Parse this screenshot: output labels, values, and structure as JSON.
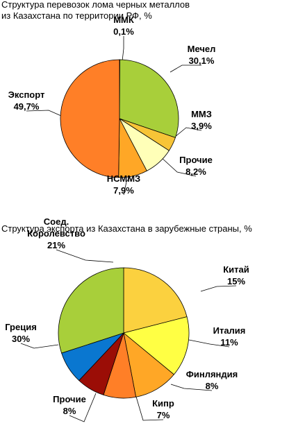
{
  "chart_data": [
    {
      "type": "pie",
      "title_line1": "Структура перевозок лома черных металлов",
      "title_line2": "из Казахстана по территории РФ, %",
      "slices": [
        {
          "label": "ММК",
          "value_text": "0,1%",
          "value": 0.1,
          "color": "#8fd64a"
        },
        {
          "label": "Мечел",
          "value_text": "30,1%",
          "value": 30.1,
          "color": "#a8cf3a"
        },
        {
          "label": "ММЗ",
          "value_text": "3,9%",
          "value": 3.9,
          "color": "#f7c437"
        },
        {
          "label": "Прочие",
          "value_text": "8,2%",
          "value": 8.2,
          "color": "#ffffb8"
        },
        {
          "label": "НСММЗ",
          "value_text": "7,9%",
          "value": 7.9,
          "color": "#ffa726"
        },
        {
          "label": "Экспорт",
          "value_text": "49,7%",
          "value": 49.7,
          "color": "#ff7f27"
        }
      ]
    },
    {
      "type": "pie",
      "title_line1": "Структура экспорта из Казахстана в зарубежные страны, %",
      "slices": [
        {
          "label": "Соед. Королевство",
          "label_lines": [
            "Соед.",
            "Королевство"
          ],
          "value_text": "21%",
          "value": 21,
          "color": "#fbd13f"
        },
        {
          "label": "Китай",
          "value_text": "15%",
          "value": 15,
          "color": "#ffff44"
        },
        {
          "label": "Италия",
          "value_text": "11%",
          "value": 11,
          "color": "#ffa726"
        },
        {
          "label": "Финляндия",
          "value_text": "8%",
          "value": 8,
          "color": "#ff7f27"
        },
        {
          "label": "Кипр",
          "value_text": "7%",
          "value": 7,
          "color": "#9b0d06"
        },
        {
          "label": "Прочие",
          "value_text": "8%",
          "value": 8,
          "color": "#0a77d0"
        },
        {
          "label": "Греция",
          "value_text": "30%",
          "value": 30,
          "color": "#a8cf3a"
        }
      ]
    }
  ]
}
